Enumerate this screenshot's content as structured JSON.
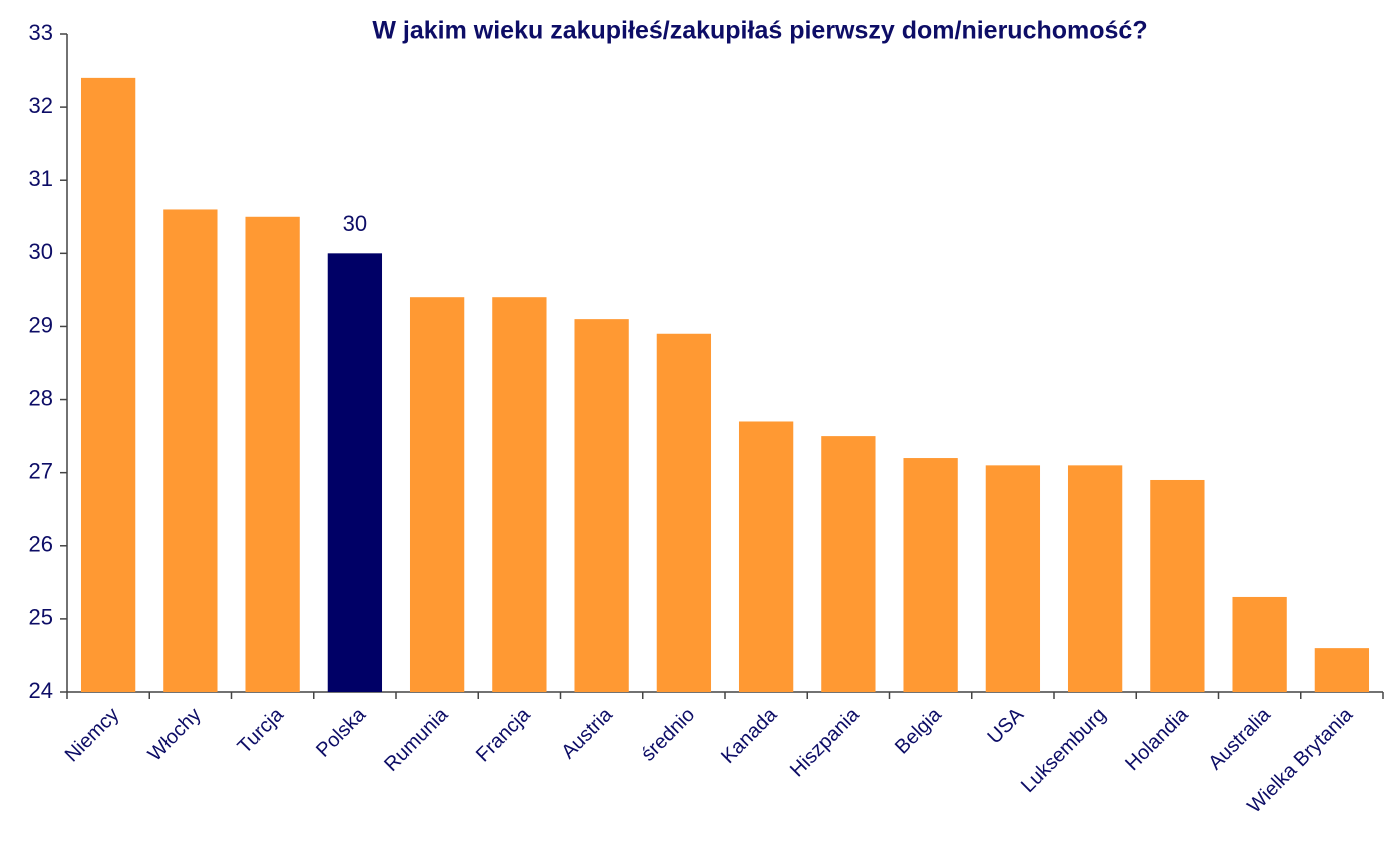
{
  "chart_data": {
    "type": "bar",
    "title": "W jakim wieku zakupiłeś/zakupiłaś pierwszy dom/nieruchomość?",
    "categories": [
      "Niemcy",
      "Włochy",
      "Turcja",
      "Polska",
      "Rumunia",
      "Francja",
      "Austria",
      "średnio",
      "Kanada",
      "Hiszpania",
      "Belgia",
      "USA",
      "Luksemburg",
      "Holandia",
      "Australia",
      "Wielka Brytania"
    ],
    "values": [
      32.4,
      30.6,
      30.5,
      30,
      29.4,
      29.4,
      29.1,
      28.9,
      27.7,
      27.5,
      27.2,
      27.1,
      27.1,
      26.9,
      25.3,
      24.6
    ],
    "color": "#ff9933",
    "highlight": {
      "category": "Polska",
      "color": "#000066"
    },
    "ylim": [
      24,
      33
    ],
    "yticks": [
      24,
      25,
      26,
      27,
      28,
      29,
      30,
      31,
      32,
      33
    ],
    "grid": false
  }
}
